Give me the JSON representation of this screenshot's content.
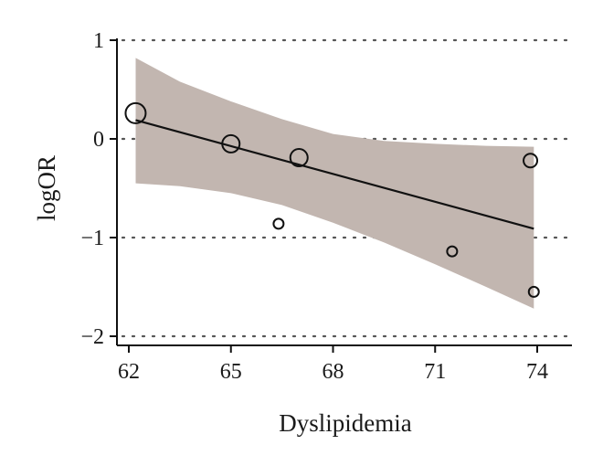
{
  "chart_data": {
    "type": "scatter",
    "title": "",
    "xlabel": "Dyslipidemia",
    "ylabel": "logOR",
    "xlim": [
      61.8,
      75.0
    ],
    "ylim": [
      -2.1,
      1.1
    ],
    "x_ticks": [
      62,
      65,
      68,
      71,
      74
    ],
    "y_ticks": [
      1,
      0,
      -1,
      -2
    ],
    "y_tick_labels": [
      "1",
      "0",
      "−1",
      "−2"
    ],
    "grid": "horizontal dotted at y ticks",
    "points": [
      {
        "x": 62.2,
        "y": 0.26,
        "weight": "large"
      },
      {
        "x": 65.0,
        "y": -0.05,
        "weight": "medium"
      },
      {
        "x": 67.0,
        "y": -0.19,
        "weight": "medium"
      },
      {
        "x": 66.4,
        "y": -0.86,
        "weight": "small"
      },
      {
        "x": 71.5,
        "y": -1.14,
        "weight": "small"
      },
      {
        "x": 73.8,
        "y": -0.22,
        "weight": "small-medium"
      },
      {
        "x": 73.9,
        "y": -1.55,
        "weight": "small"
      }
    ],
    "regression_line": {
      "x": [
        62.2,
        73.9
      ],
      "y": [
        0.19,
        -0.91
      ]
    },
    "confidence_band": {
      "x": [
        62.2,
        63.5,
        65.0,
        66.5,
        68.0,
        69.5,
        71.0,
        72.5,
        73.9
      ],
      "upper": [
        0.82,
        0.58,
        0.38,
        0.2,
        0.05,
        -0.02,
        -0.05,
        -0.07,
        -0.08
      ],
      "lower": [
        -0.45,
        -0.48,
        -0.55,
        -0.67,
        -0.85,
        -1.05,
        -1.27,
        -1.5,
        -1.72
      ]
    },
    "colors": {
      "band": "#c2b6b0",
      "line": "#111111",
      "marker": "#111111",
      "grid": "#555555"
    }
  }
}
